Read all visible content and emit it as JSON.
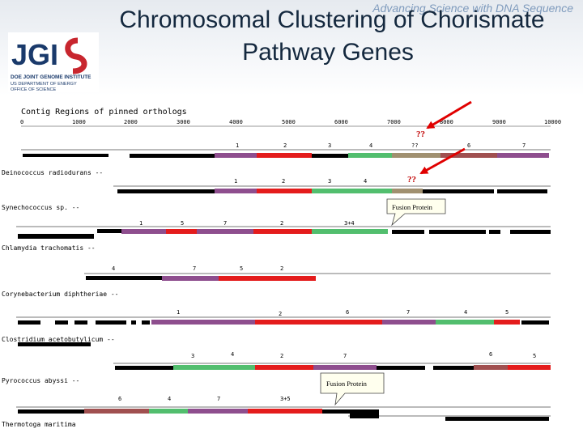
{
  "header": {
    "tagline": "Advancing Science with DNA Sequence",
    "title_line1": "Chromosomal Clustering of Chorismate",
    "title_line2": "Pathway Genes",
    "logo": {
      "brand": "JGI",
      "line1": "DOE JOINT GENOME INSTITUTE",
      "line2": "US DEPARTMENT OF ENERGY",
      "line3": "OFFICE OF SCIENCE"
    }
  },
  "diagram": {
    "heading": "Contig Regions of pinned orthologs",
    "ruler_ticks": [
      "0",
      "1000",
      "2000",
      "3000",
      "4000",
      "5000",
      "6000",
      "7000",
      "8000",
      "9000",
      "10000"
    ],
    "annotations": {
      "question_1": "??",
      "question_2": "??",
      "fusion_1": "Fusion Protein",
      "fusion_2": "Fusion Protein"
    },
    "organisms": [
      "Deinococcus radiodurans --",
      "Synechococcus sp. --",
      "Chlamydia trachomatis --",
      "Corynebacterium diphtheriae --",
      "Clostridium acetobutylicum --",
      "Pyrococcus abyssi --",
      "Thermotoga maritima"
    ],
    "tracks": [
      {
        "forward": [
          {
            "label": "1",
            "color": "#8e4e8e"
          },
          {
            "label": "2",
            "color": "#e41c1c"
          },
          {
            "label": "3",
            "color": "#8c4040"
          },
          {
            "label": "4",
            "color": "#52be6e"
          },
          {
            "label": "??",
            "color": "#a09070"
          },
          {
            "label": "6",
            "color": "#a05050"
          },
          {
            "label": "7",
            "color": "#8e4e8e"
          }
        ],
        "reverse": [
          {
            "label": "1",
            "color": "#8e4e8e"
          },
          {
            "label": "2",
            "color": "#e41c1c"
          },
          {
            "label": "3",
            "color": "#52be6e"
          },
          {
            "label": "4",
            "color": "#52be6e"
          },
          {
            "label": "??",
            "color": "#a09070"
          }
        ]
      },
      {
        "forward": [
          {
            "label": "1",
            "color": "#8e4e8e"
          },
          {
            "label": "5",
            "color": "#e41c1c"
          },
          {
            "label": "7",
            "color": "#8e4e8e"
          },
          {
            "label": "2",
            "color": "#e41c1c"
          },
          {
            "label": "3+4",
            "color": "#52be6e"
          }
        ]
      },
      {
        "forward": [
          {
            "label": "4",
            "color": "#52be6e"
          },
          {
            "label": "7",
            "color": "#8e4e8e"
          },
          {
            "label": "5",
            "color": "#e41c1c"
          },
          {
            "label": "2",
            "color": "#e41c1c"
          }
        ]
      },
      {
        "forward": [
          {
            "label": "1",
            "color": "#8e4e8e"
          },
          {
            "label": "2",
            "color": "#e41c1c"
          },
          {
            "label": "6",
            "color": "#a05050"
          },
          {
            "label": "7",
            "color": "#8e4e8e"
          },
          {
            "label": "4",
            "color": "#52be6e"
          },
          {
            "label": "5",
            "color": "#e41c1c"
          }
        ]
      },
      {
        "forward": [
          {
            "label": "3",
            "color": "#52be6e"
          },
          {
            "label": "4",
            "color": "#52be6e"
          },
          {
            "label": "2",
            "color": "#e41c1c"
          },
          {
            "label": "7",
            "color": "#8e4e8e"
          },
          {
            "label": "6",
            "color": "#a05050"
          },
          {
            "label": "5",
            "color": "#e41c1c"
          }
        ]
      },
      {
        "forward": [
          {
            "label": "6",
            "color": "#a05050"
          },
          {
            "label": "4",
            "color": "#52be6e"
          },
          {
            "label": "7",
            "color": "#8e4e8e"
          },
          {
            "label": "3+5",
            "color": "#e41c1c"
          }
        ]
      }
    ]
  }
}
